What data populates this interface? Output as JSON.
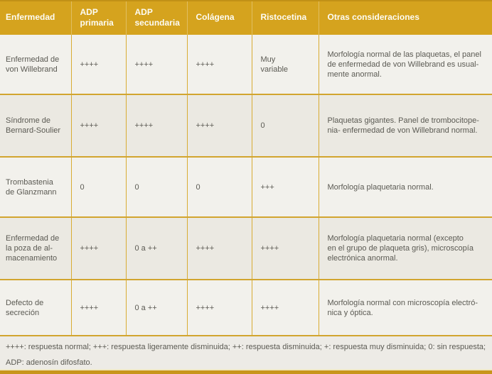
{
  "colors": {
    "header_bg": "#D5A31E",
    "header_text": "#FDFCF4",
    "grid_line": "#D2A52F",
    "row_odd_bg": "#F2F1EC",
    "row_even_bg": "#EBE9E2",
    "footer_bg": "#EDEBE6",
    "body_text": "#5B5A53",
    "bottom_bar": "#C8951B",
    "page_bg": "#E7E7E2"
  },
  "table": {
    "columns": [
      "Enfermedad",
      "ADP\nprimaria",
      "ADP\nsecundaria",
      "Colágena",
      "Ristocetina",
      "Otras consideraciones"
    ],
    "rows": [
      {
        "enfermedad": "Enfermedad de\nvon Willebrand",
        "adp_primaria": "++++",
        "adp_secundaria": "++++",
        "colagena": "++++",
        "ristocetina": "Muy\nvariable",
        "otras": "Morfología normal de las plaquetas, el panel\nde enfermedad de von Willebrand es usual-\nmente anormal."
      },
      {
        "enfermedad": "Síndrome de\nBernard-Soulier",
        "adp_primaria": "++++",
        "adp_secundaria": "++++",
        "colagena": "++++",
        "ristocetina": "0",
        "otras": "Plaquetas gigantes. Panel de trombocitope-\nnia- enfermedad de von Willebrand normal."
      },
      {
        "enfermedad": "Trombastenia\nde Glanzmann",
        "adp_primaria": "0",
        "adp_secundaria": "0",
        "colagena": "0",
        "ristocetina": "+++",
        "otras": "Morfología plaquetaria normal."
      },
      {
        "enfermedad": "Enfermedad de\nla poza de al-\nmacenamiento",
        "adp_primaria": "++++",
        "adp_secundaria": "0 a ++",
        "colagena": "++++",
        "ristocetina": "++++",
        "otras": "Morfología plaquetaria normal (excepto\nen el grupo de plaqueta gris), microscopía\nelectrónica anormal."
      },
      {
        "enfermedad": "Defecto de\nsecreción",
        "adp_primaria": "++++",
        "adp_secundaria": "0 a ++",
        "colagena": "++++",
        "ristocetina": "++++",
        "otras": "Morfología normal con microscopía electró-\nnica y óptica."
      }
    ]
  },
  "footnote": "++++: respuesta normal; +++: respuesta ligeramente disminuida; ++: respuesta disminuida; +: respuesta muy disminuida; 0: sin respuesta;\nADP: adenosín difosfato."
}
